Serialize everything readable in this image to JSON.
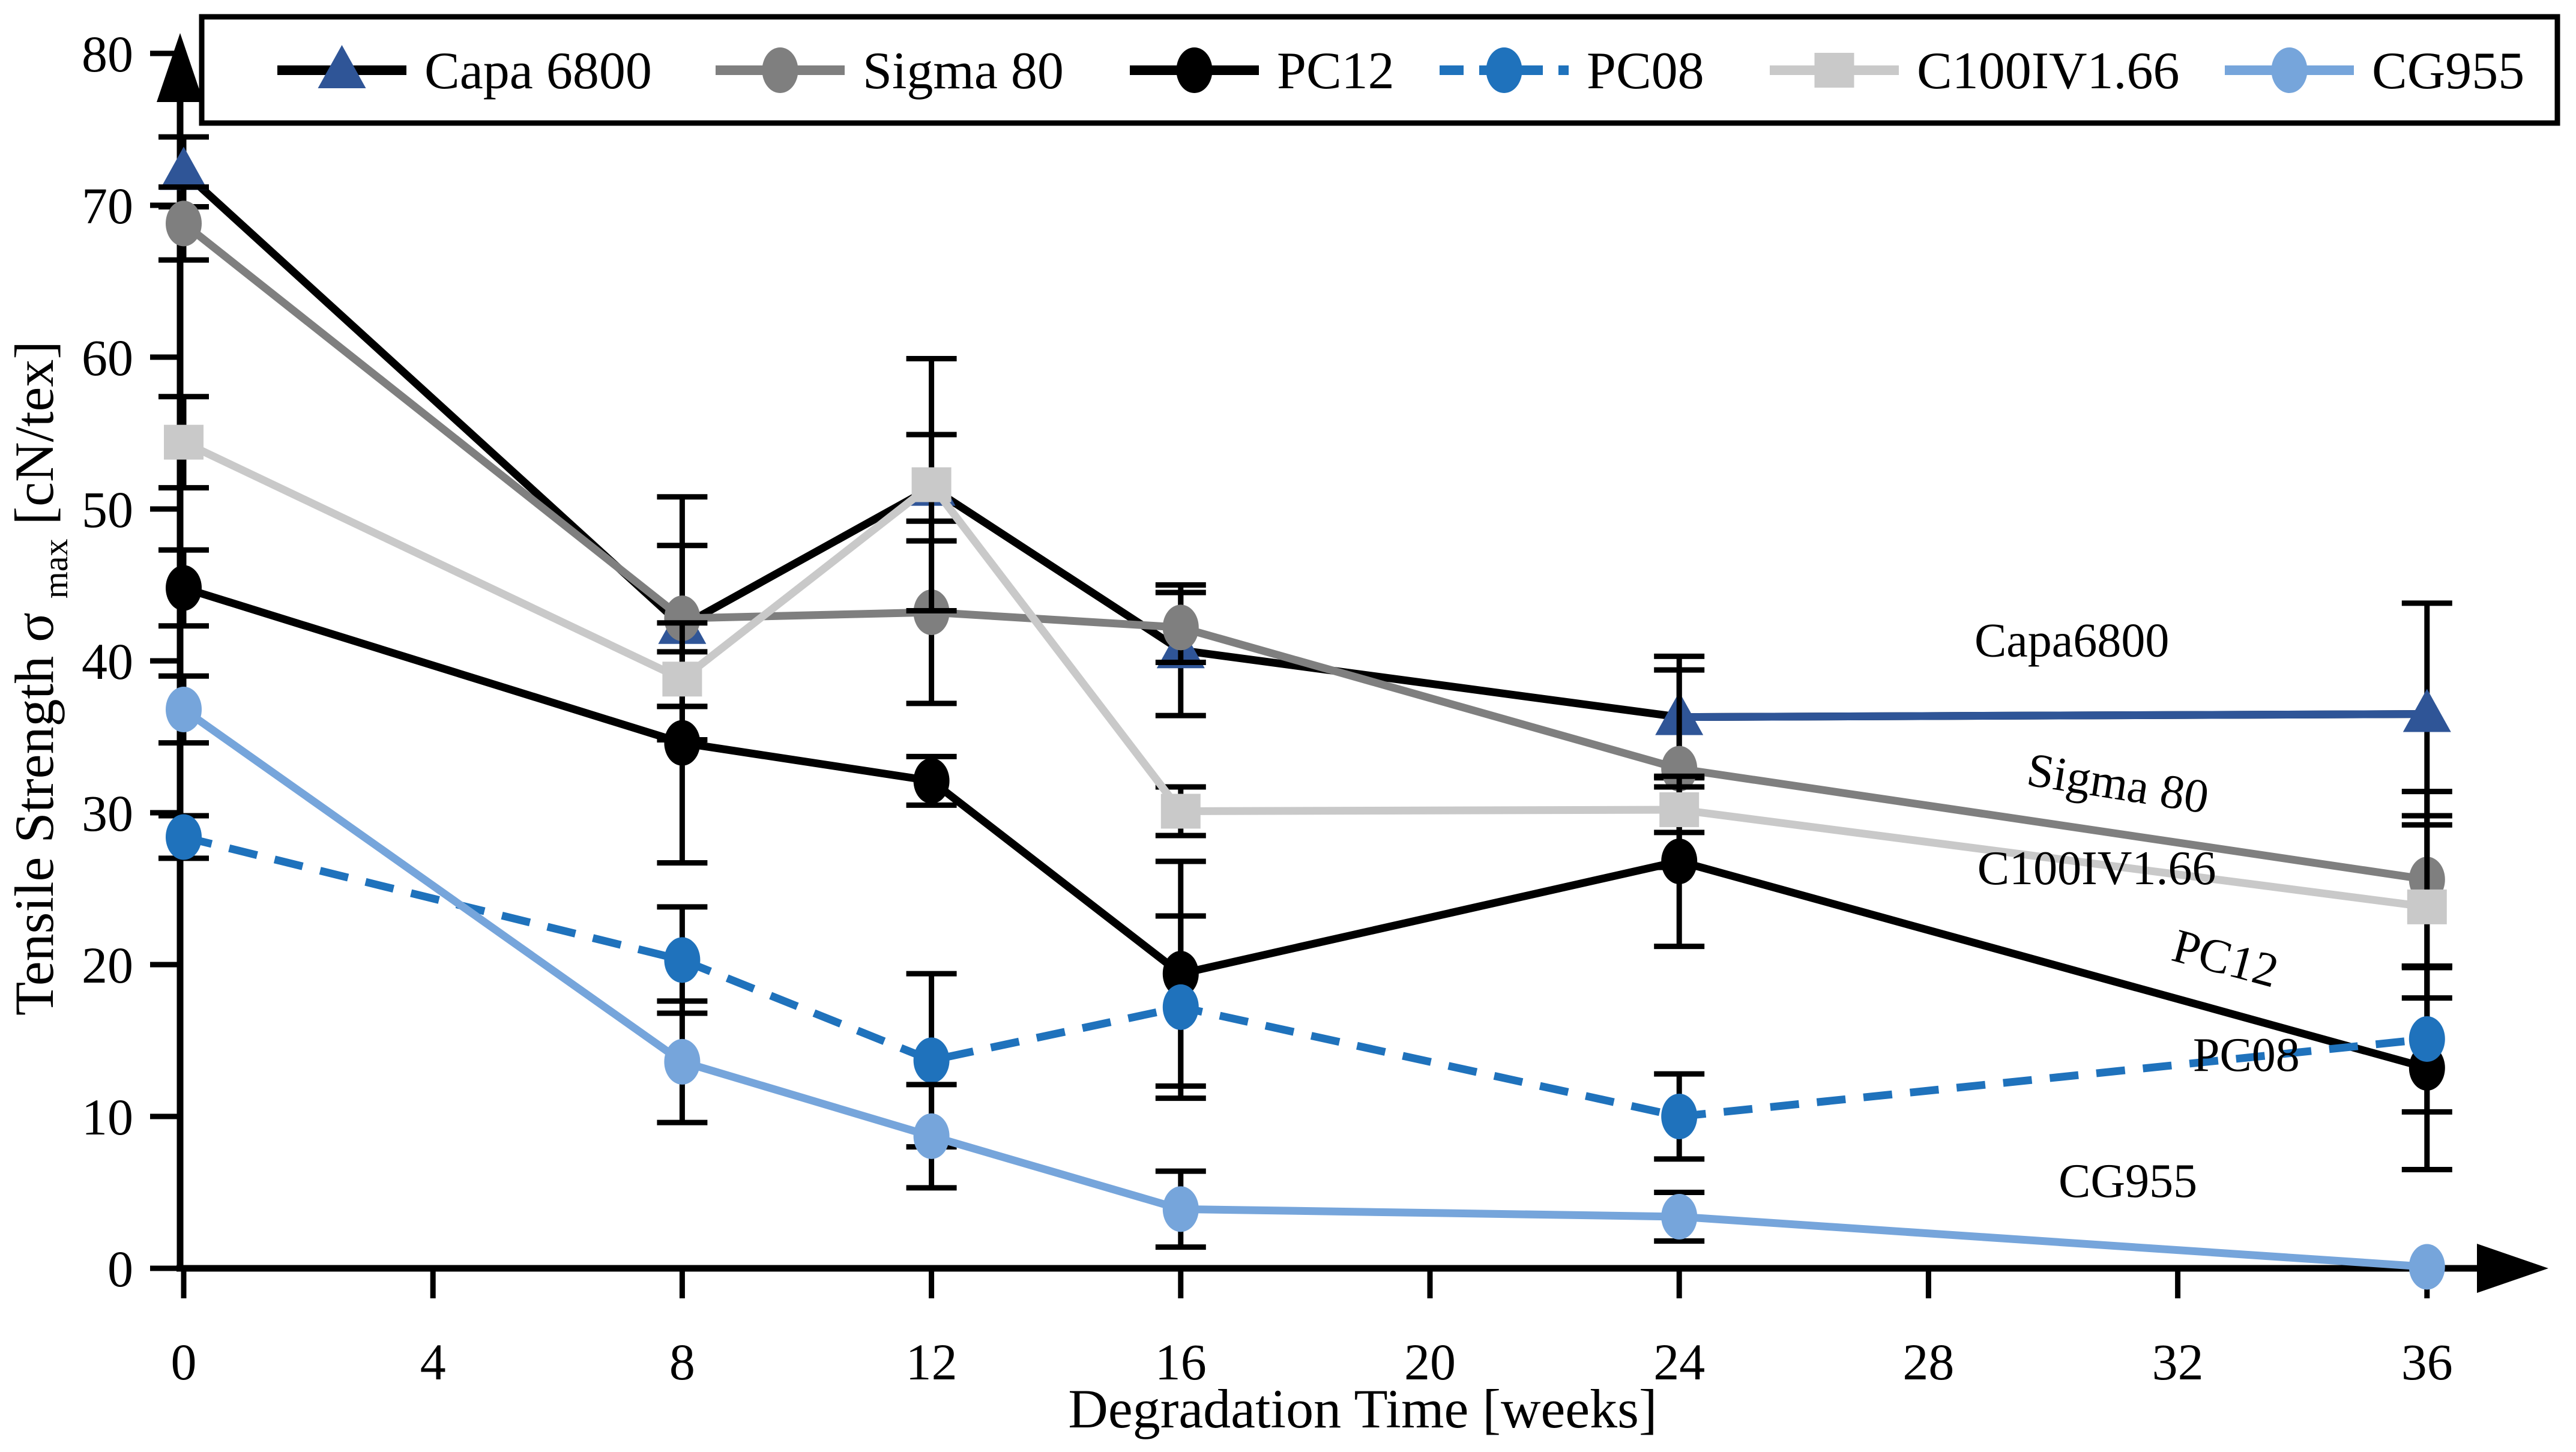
{
  "chart_data": {
    "type": "line",
    "title": "",
    "xlabel": "Degradation Time [weeks]",
    "ylabel_parts": {
      "pre": "Tensile Strength σ",
      "sub": "max",
      "post": " [cN/tex]"
    },
    "x": [
      0,
      8,
      12,
      16,
      24,
      36
    ],
    "x_ticks": [
      0,
      4,
      8,
      12,
      16,
      20,
      24,
      28,
      32,
      36
    ],
    "y_ticks": [
      0,
      10,
      20,
      30,
      40,
      50,
      60,
      70,
      80
    ],
    "xlim": [
      0,
      38
    ],
    "ylim": [
      0,
      80
    ],
    "grid": false,
    "legend_position": "top",
    "axis_arrows": true,
    "error_bar_color": "#000000",
    "series": [
      {
        "name": "Capa 6800",
        "marker": "triangle",
        "marker_color": "#2F5597",
        "line_color": "#000000",
        "last_segment_color": "#2F5597",
        "line_style": "solid",
        "values": [
          72.2,
          42.3,
          51.4,
          40.7,
          36.3,
          36.5
        ],
        "errors": [
          2.3,
          5.3,
          3.5,
          4.3,
          4.0,
          7.3
        ]
      },
      {
        "name": "Sigma 80",
        "marker": "circle",
        "marker_color": "#7F7F7F",
        "line_color": "#7F7F7F",
        "line_style": "solid",
        "values": [
          68.8,
          42.8,
          43.2,
          42.2,
          32.9,
          25.6
        ],
        "errors": [
          2.4,
          8.0,
          6.0,
          2.3,
          6.5,
          5.8
        ]
      },
      {
        "name": "PC12",
        "marker": "circle",
        "marker_color": "#000000",
        "line_color": "#000000",
        "line_style": "solid",
        "values": [
          44.8,
          34.6,
          32.1,
          19.4,
          26.8,
          13.2
        ],
        "errors": [
          2.5,
          7.9,
          1.6,
          7.4,
          5.6,
          6.7
        ]
      },
      {
        "name": "PC08",
        "marker": "circle",
        "marker_color": "#1F72BC",
        "line_color": "#1F72BC",
        "line_style": "dashed",
        "values": [
          28.4,
          20.3,
          13.7,
          17.2,
          10.0,
          15.1
        ],
        "errors": [
          1.4,
          3.5,
          5.7,
          6.0,
          2.8,
          4.8
        ]
      },
      {
        "name": "C100IV1.66",
        "marker": "square",
        "marker_color": "#C9C9C9",
        "line_color": "#C9C9C9",
        "line_style": "solid",
        "values": [
          54.4,
          38.8,
          51.6,
          30.1,
          30.2,
          23.8
        ],
        "errors": [
          3.0,
          1.8,
          8.3,
          1.6,
          1.5,
          6.0
        ]
      },
      {
        "name": "CG955",
        "marker": "circle",
        "marker_color": "#76A5DB",
        "line_color": "#76A5DB",
        "line_style": "solid",
        "values": [
          36.8,
          13.6,
          8.7,
          3.9,
          3.4,
          0.1
        ],
        "errors": [
          2.2,
          4.0,
          3.4,
          2.5,
          1.6,
          0
        ]
      }
    ],
    "annotations": [
      {
        "text": "Capa6800",
        "x": 30.3,
        "y": 40.3,
        "rotation": 0
      },
      {
        "text": "Sigma 80",
        "x": 31.0,
        "y": 30.9,
        "rotation": 9
      },
      {
        "text": "C100IV1.66",
        "x": 30.7,
        "y": 25.3,
        "rotation": 0
      },
      {
        "text": "PC12",
        "x": 32.7,
        "y": 19.4,
        "rotation": 15
      },
      {
        "text": "PC08",
        "x": 33.1,
        "y": 13.0,
        "rotation": 0
      },
      {
        "text": "CG955",
        "x": 31.2,
        "y": 4.7,
        "rotation": 0
      }
    ]
  }
}
